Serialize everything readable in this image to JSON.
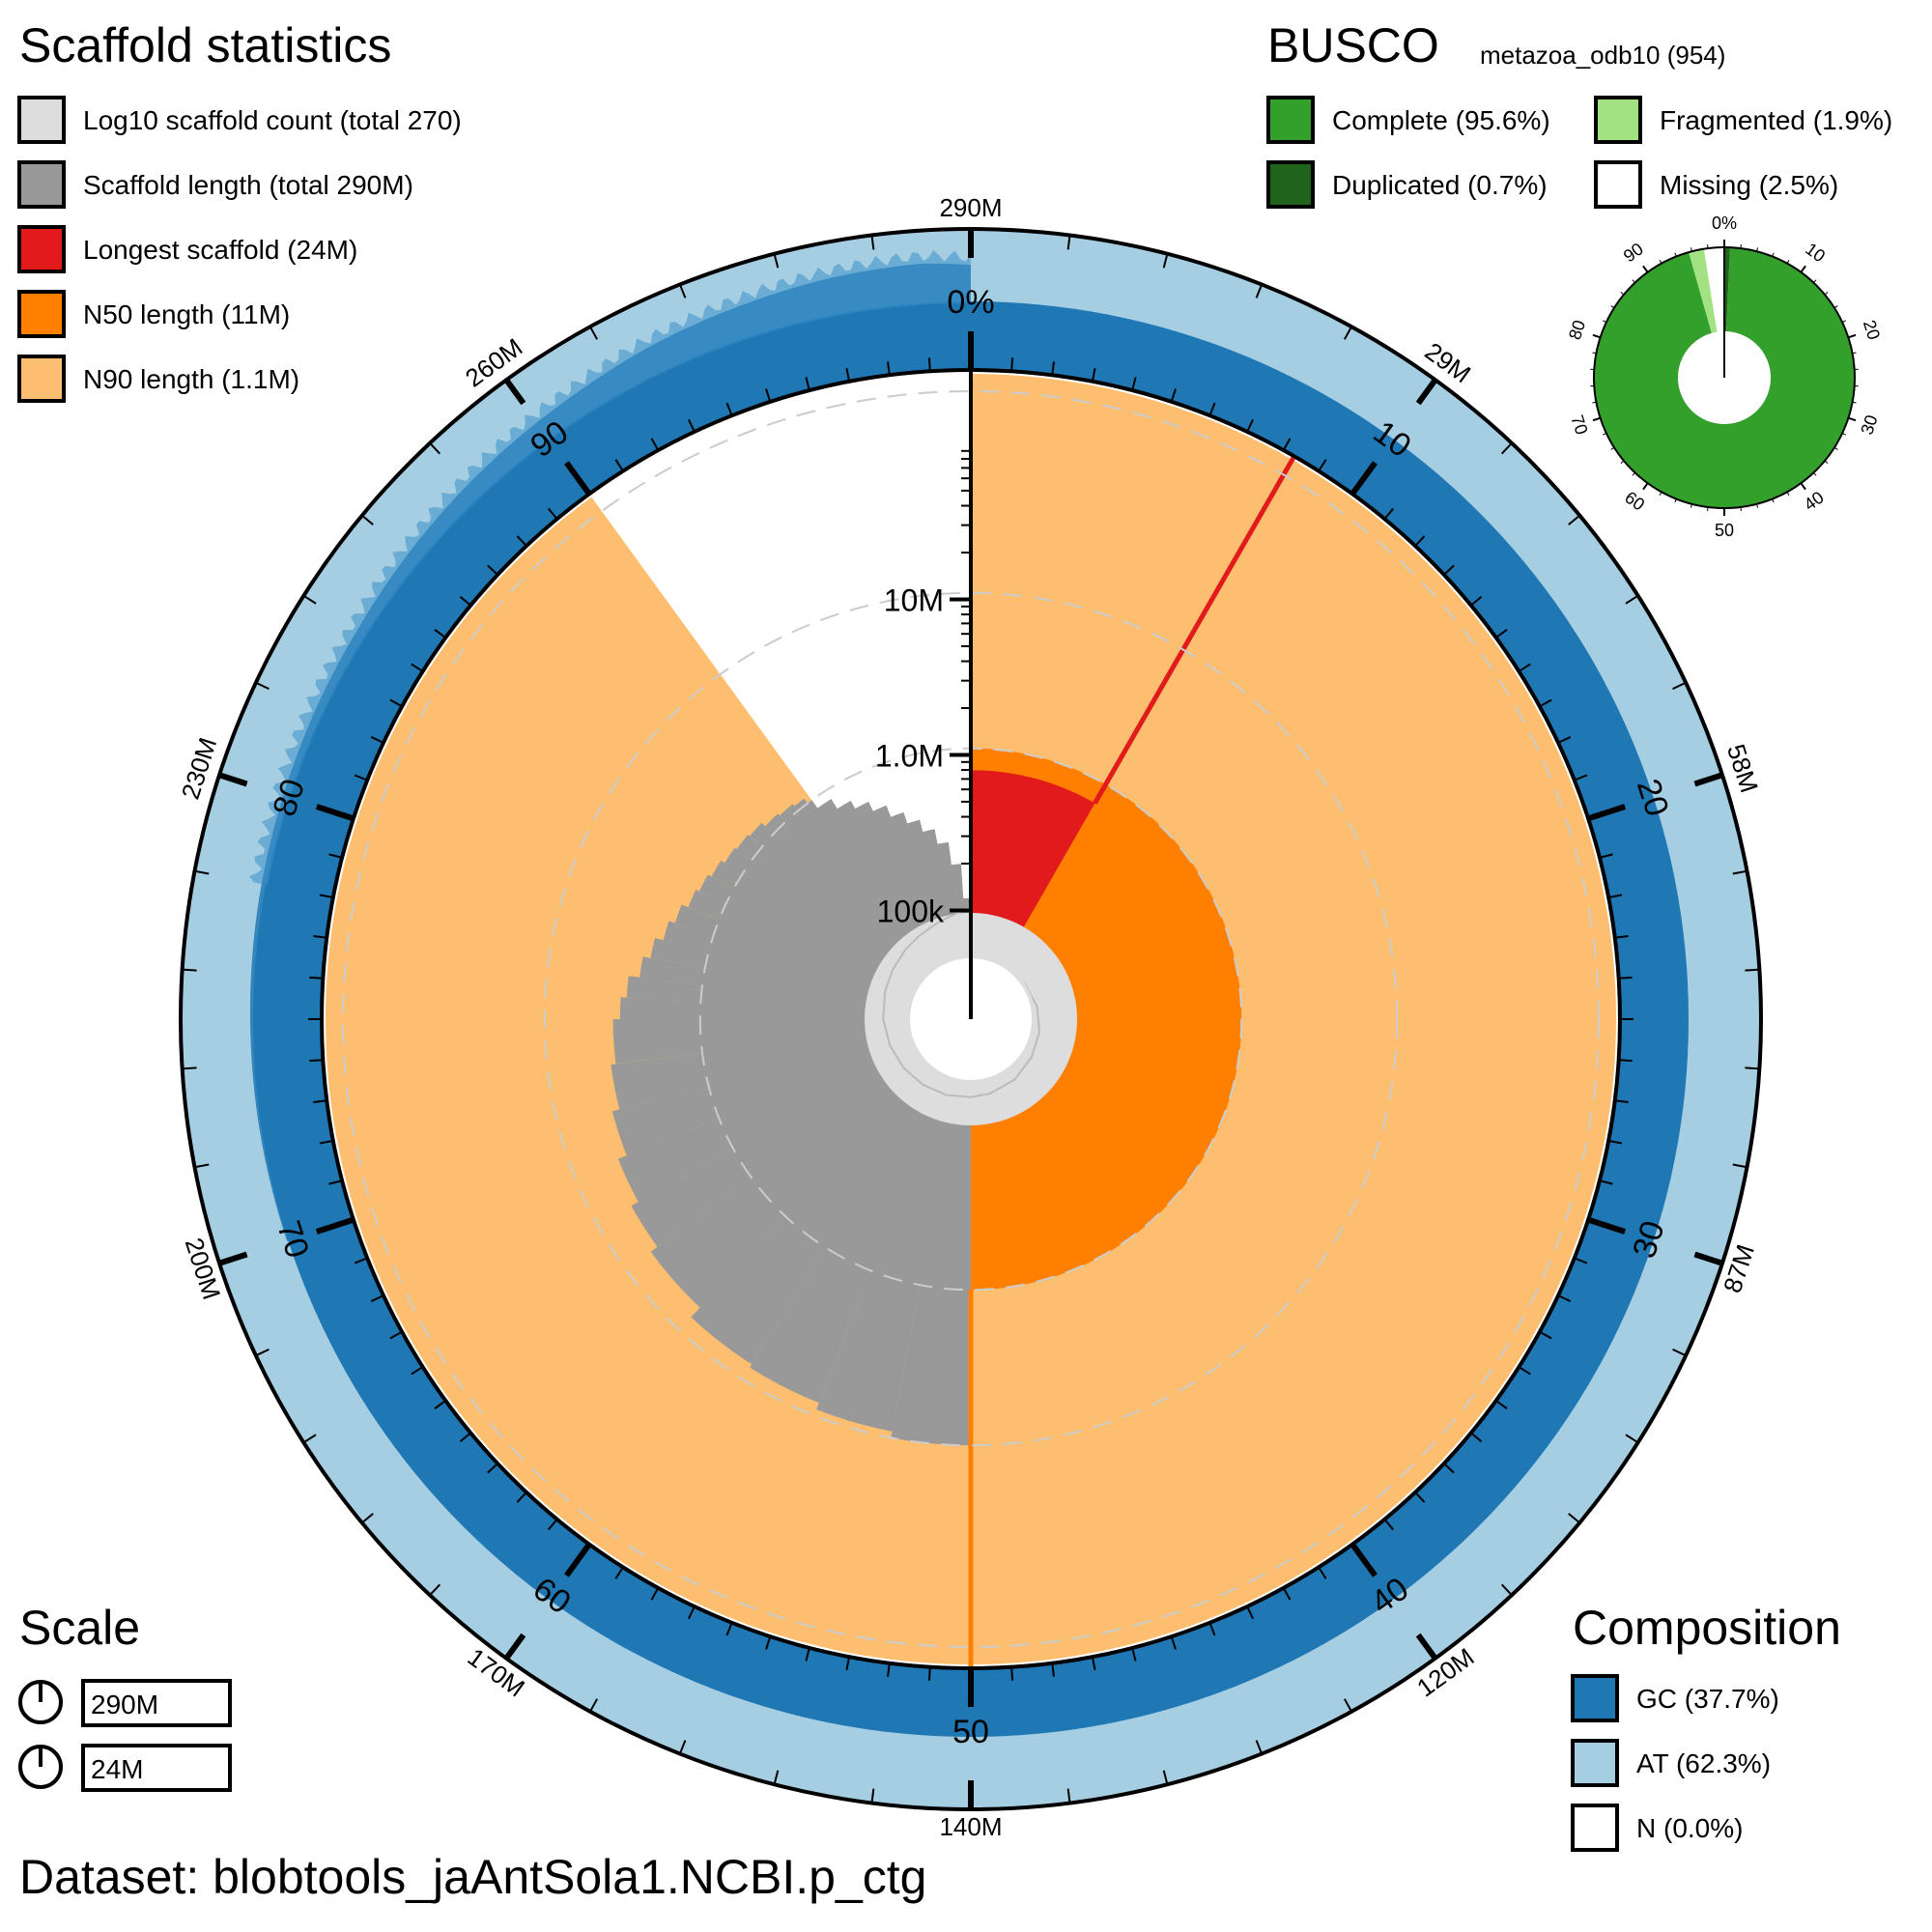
{
  "scaffold_stats": {
    "title": "Scaffold statistics",
    "legend": [
      {
        "label": "Log10 scaffold count (total 270)",
        "color": "#dddddd"
      },
      {
        "label": "Scaffold length (total 290M)",
        "color": "#999999"
      },
      {
        "label": "Longest scaffold (24M)",
        "color": "#e31a1c"
      },
      {
        "label": "N50 length (11M)",
        "color": "#ff7f00"
      },
      {
        "label": "N90 length (1.1M)",
        "color": "#fdbf6f"
      }
    ]
  },
  "busco": {
    "title": "BUSCO",
    "lineage": "metazoa_odb10 (954)",
    "legend": [
      {
        "label": "Complete (95.6%)",
        "color": "#33a02c"
      },
      {
        "label": "Fragmented (1.9%)",
        "color": "#a3e283"
      },
      {
        "label": "Duplicated (0.7%)",
        "color": "#20641c"
      },
      {
        "label": "Missing (2.5%)",
        "color": "#ffffff"
      }
    ],
    "pie": {
      "single_copy": 94.9,
      "duplicated": 0.7,
      "fragmented": 1.9,
      "missing": 2.5
    },
    "tick_labels": [
      "0%",
      "10",
      "20",
      "30",
      "40",
      "50",
      "60",
      "70",
      "80",
      "90"
    ]
  },
  "scale": {
    "title": "Scale",
    "items": [
      "290M",
      "24M"
    ]
  },
  "composition": {
    "title": "Composition",
    "legend": [
      {
        "label": "GC (37.7%)",
        "color": "#1f78b4"
      },
      {
        "label": "AT (62.3%)",
        "color": "#a6cee3"
      },
      {
        "label": "N (0.0%)",
        "color": "#ffffff"
      }
    ]
  },
  "dataset": "Dataset: blobtools_jaAntSola1.NCBI.p_ctg",
  "chart_data": {
    "type": "snail",
    "total_length": 290,
    "scaffold_count": 270,
    "longest_scaffold": 24,
    "n50": 11,
    "n90": 1.1,
    "gc_percent": 37.7,
    "at_percent": 62.3,
    "n_percent": 0.0,
    "n50_percentile": 50,
    "n90_percentile": 90,
    "longest_percentile": 8.3,
    "outer_tick_labels": [
      "290M",
      "29M",
      "58M",
      "87M",
      "120M",
      "140M",
      "170M",
      "200M",
      "230M",
      "260M"
    ],
    "percent_tick_labels": [
      "0%",
      "10",
      "20",
      "30",
      "40",
      "50",
      "60",
      "70",
      "80",
      "90"
    ],
    "radial_axis_labels": [
      "100k",
      "1.0M",
      "10M"
    ],
    "length_profile": [
      [
        0,
        24
      ],
      [
        8.3,
        18
      ],
      [
        10,
        14
      ],
      [
        12,
        13.5
      ],
      [
        16,
        13
      ],
      [
        20,
        12.5
      ],
      [
        24,
        12
      ],
      [
        28,
        12
      ],
      [
        32,
        11.5
      ],
      [
        36,
        11.5
      ],
      [
        40,
        11.2
      ],
      [
        44,
        11
      ],
      [
        47,
        11
      ],
      [
        50,
        11
      ],
      [
        53,
        10
      ],
      [
        56,
        9
      ],
      [
        59,
        8.5
      ],
      [
        62,
        7
      ],
      [
        65,
        6.2
      ],
      [
        67,
        5.5
      ],
      [
        69,
        4.8
      ],
      [
        71,
        4.3
      ],
      [
        73,
        4.0
      ],
      [
        75,
        3.6
      ],
      [
        76,
        3.3
      ],
      [
        77,
        2.8
      ],
      [
        78,
        2.5
      ],
      [
        79,
        2.2
      ],
      [
        80,
        2.0
      ],
      [
        81,
        1.8
      ],
      [
        82,
        1.7
      ],
      [
        83,
        1.6
      ],
      [
        84,
        1.5
      ],
      [
        85,
        1.45
      ],
      [
        86,
        1.4
      ],
      [
        87,
        1.3
      ],
      [
        88,
        1.25
      ],
      [
        89,
        1.2
      ],
      [
        89.7,
        1.1
      ],
      [
        90,
        0.95
      ],
      [
        91,
        0.8
      ],
      [
        92,
        0.7
      ],
      [
        93,
        0.6
      ],
      [
        94,
        0.5
      ],
      [
        95,
        0.42
      ],
      [
        96,
        0.35
      ],
      [
        97,
        0.28
      ],
      [
        98,
        0.2
      ],
      [
        99,
        0.12
      ],
      [
        100,
        0.05
      ]
    ],
    "count_profile": [
      [
        0,
        1
      ],
      [
        3,
        1.4
      ],
      [
        8,
        2.2
      ],
      [
        12,
        2.6
      ],
      [
        16,
        3
      ],
      [
        22,
        4
      ],
      [
        28,
        5
      ],
      [
        34,
        6
      ],
      [
        40,
        8
      ],
      [
        46,
        10
      ],
      [
        50,
        11
      ],
      [
        55,
        13
      ],
      [
        60,
        15
      ],
      [
        65,
        18
      ],
      [
        70,
        22
      ],
      [
        75,
        28
      ],
      [
        80,
        36
      ],
      [
        84,
        45
      ],
      [
        88,
        60
      ],
      [
        91,
        75
      ],
      [
        94,
        100
      ],
      [
        96,
        130
      ],
      [
        98,
        180
      ],
      [
        100,
        270
      ]
    ],
    "gc_profile": [
      [
        0,
        37.5
      ],
      [
        10,
        37.6
      ],
      [
        20,
        37.4
      ],
      [
        30,
        37.7
      ],
      [
        40,
        37.6
      ],
      [
        50,
        37.8
      ],
      [
        60,
        37.5
      ],
      [
        70,
        37.9
      ],
      [
        75,
        38.2
      ],
      [
        80,
        38.6
      ],
      [
        84,
        39.2
      ],
      [
        88,
        40.5
      ],
      [
        91,
        41.5
      ],
      [
        93,
        42.5
      ],
      [
        95,
        43.2
      ],
      [
        97,
        44
      ],
      [
        99,
        44.5
      ],
      [
        100,
        44
      ]
    ]
  }
}
